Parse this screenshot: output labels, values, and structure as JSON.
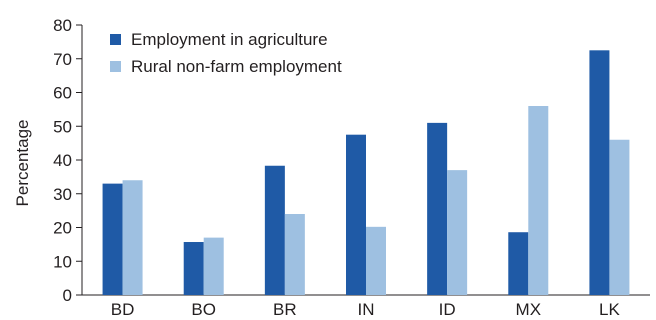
{
  "chart_data": {
    "type": "bar",
    "title": "",
    "xlabel": "",
    "ylabel": "Percentage",
    "ylim": [
      0,
      80
    ],
    "yticks": [
      0,
      10,
      20,
      30,
      40,
      50,
      60,
      70,
      80
    ],
    "grid": false,
    "legend_position": "top-left",
    "categories": [
      "BD",
      "BO",
      "BR",
      "IN",
      "ID",
      "MX",
      "LK"
    ],
    "series": [
      {
        "name": "Employment in agriculture",
        "color": "#1f5aa6",
        "values": [
          33,
          15.7,
          38.3,
          47.5,
          51,
          18.6,
          72.5
        ]
      },
      {
        "name": "Rural non-farm employment",
        "color": "#9ec0e1",
        "values": [
          34,
          17,
          24,
          20.2,
          37,
          56,
          46
        ]
      }
    ]
  }
}
